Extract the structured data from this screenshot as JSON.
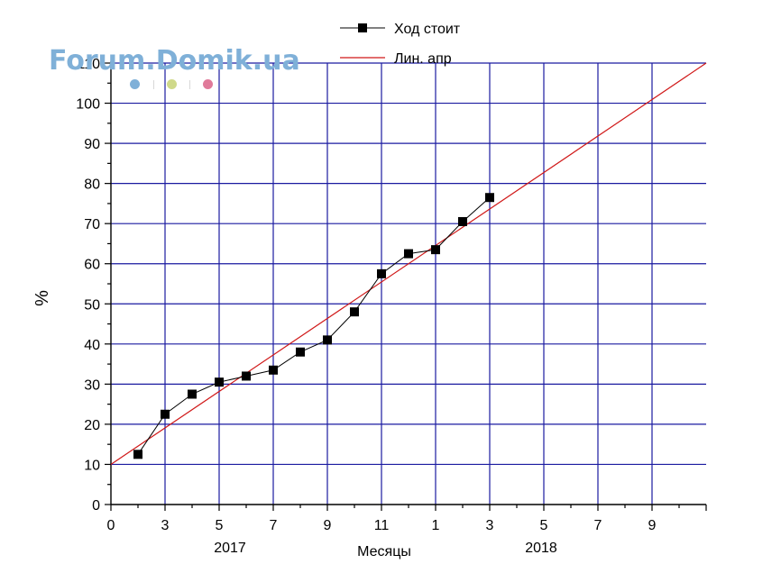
{
  "watermark": {
    "text": "Forum.Domik.ua",
    "dot_colors": [
      "#7fb0d8",
      "#cfd98a",
      "#e07a9a"
    ]
  },
  "colors": {
    "grid": "#1a1aa0",
    "series": "#000000",
    "fit": "#d01818",
    "axis": "#000000"
  },
  "chart_data": {
    "type": "line",
    "title": "",
    "xlabel": "Месяцы",
    "ylabel": "%",
    "xlim": [
      0,
      22
    ],
    "ylim": [
      0,
      110
    ],
    "grid": true,
    "legend_position": "top-center",
    "x_ticks": [
      {
        "pos": 0,
        "label": "0"
      },
      {
        "pos": 2,
        "label": "3"
      },
      {
        "pos": 4,
        "label": "5"
      },
      {
        "pos": 6,
        "label": "7"
      },
      {
        "pos": 8,
        "label": "9"
      },
      {
        "pos": 10,
        "label": "11"
      },
      {
        "pos": 12,
        "label": "1"
      },
      {
        "pos": 14,
        "label": "3"
      },
      {
        "pos": 16,
        "label": "5"
      },
      {
        "pos": 18,
        "label": "7"
      },
      {
        "pos": 20,
        "label": "9"
      }
    ],
    "y_ticks": [
      0,
      10,
      20,
      30,
      40,
      50,
      60,
      70,
      80,
      90,
      100,
      110
    ],
    "year_labels": [
      {
        "pos": 4.4,
        "label": "2017"
      },
      {
        "pos": 15.9,
        "label": "2018"
      }
    ],
    "series": [
      {
        "name": "Ход стоит",
        "marker": "square",
        "x": [
          1,
          2,
          3,
          4,
          5,
          6,
          7,
          8,
          9,
          10,
          11,
          12,
          13,
          14
        ],
        "y": [
          12.5,
          22.5,
          27.5,
          30.5,
          32.0,
          33.5,
          38.0,
          41.0,
          48.0,
          57.5,
          62.5,
          63.5,
          70.5,
          76.5
        ]
      },
      {
        "name": "Лин. апр",
        "fit": "linear",
        "x": [
          0,
          22
        ],
        "y": [
          10,
          110
        ]
      }
    ]
  }
}
